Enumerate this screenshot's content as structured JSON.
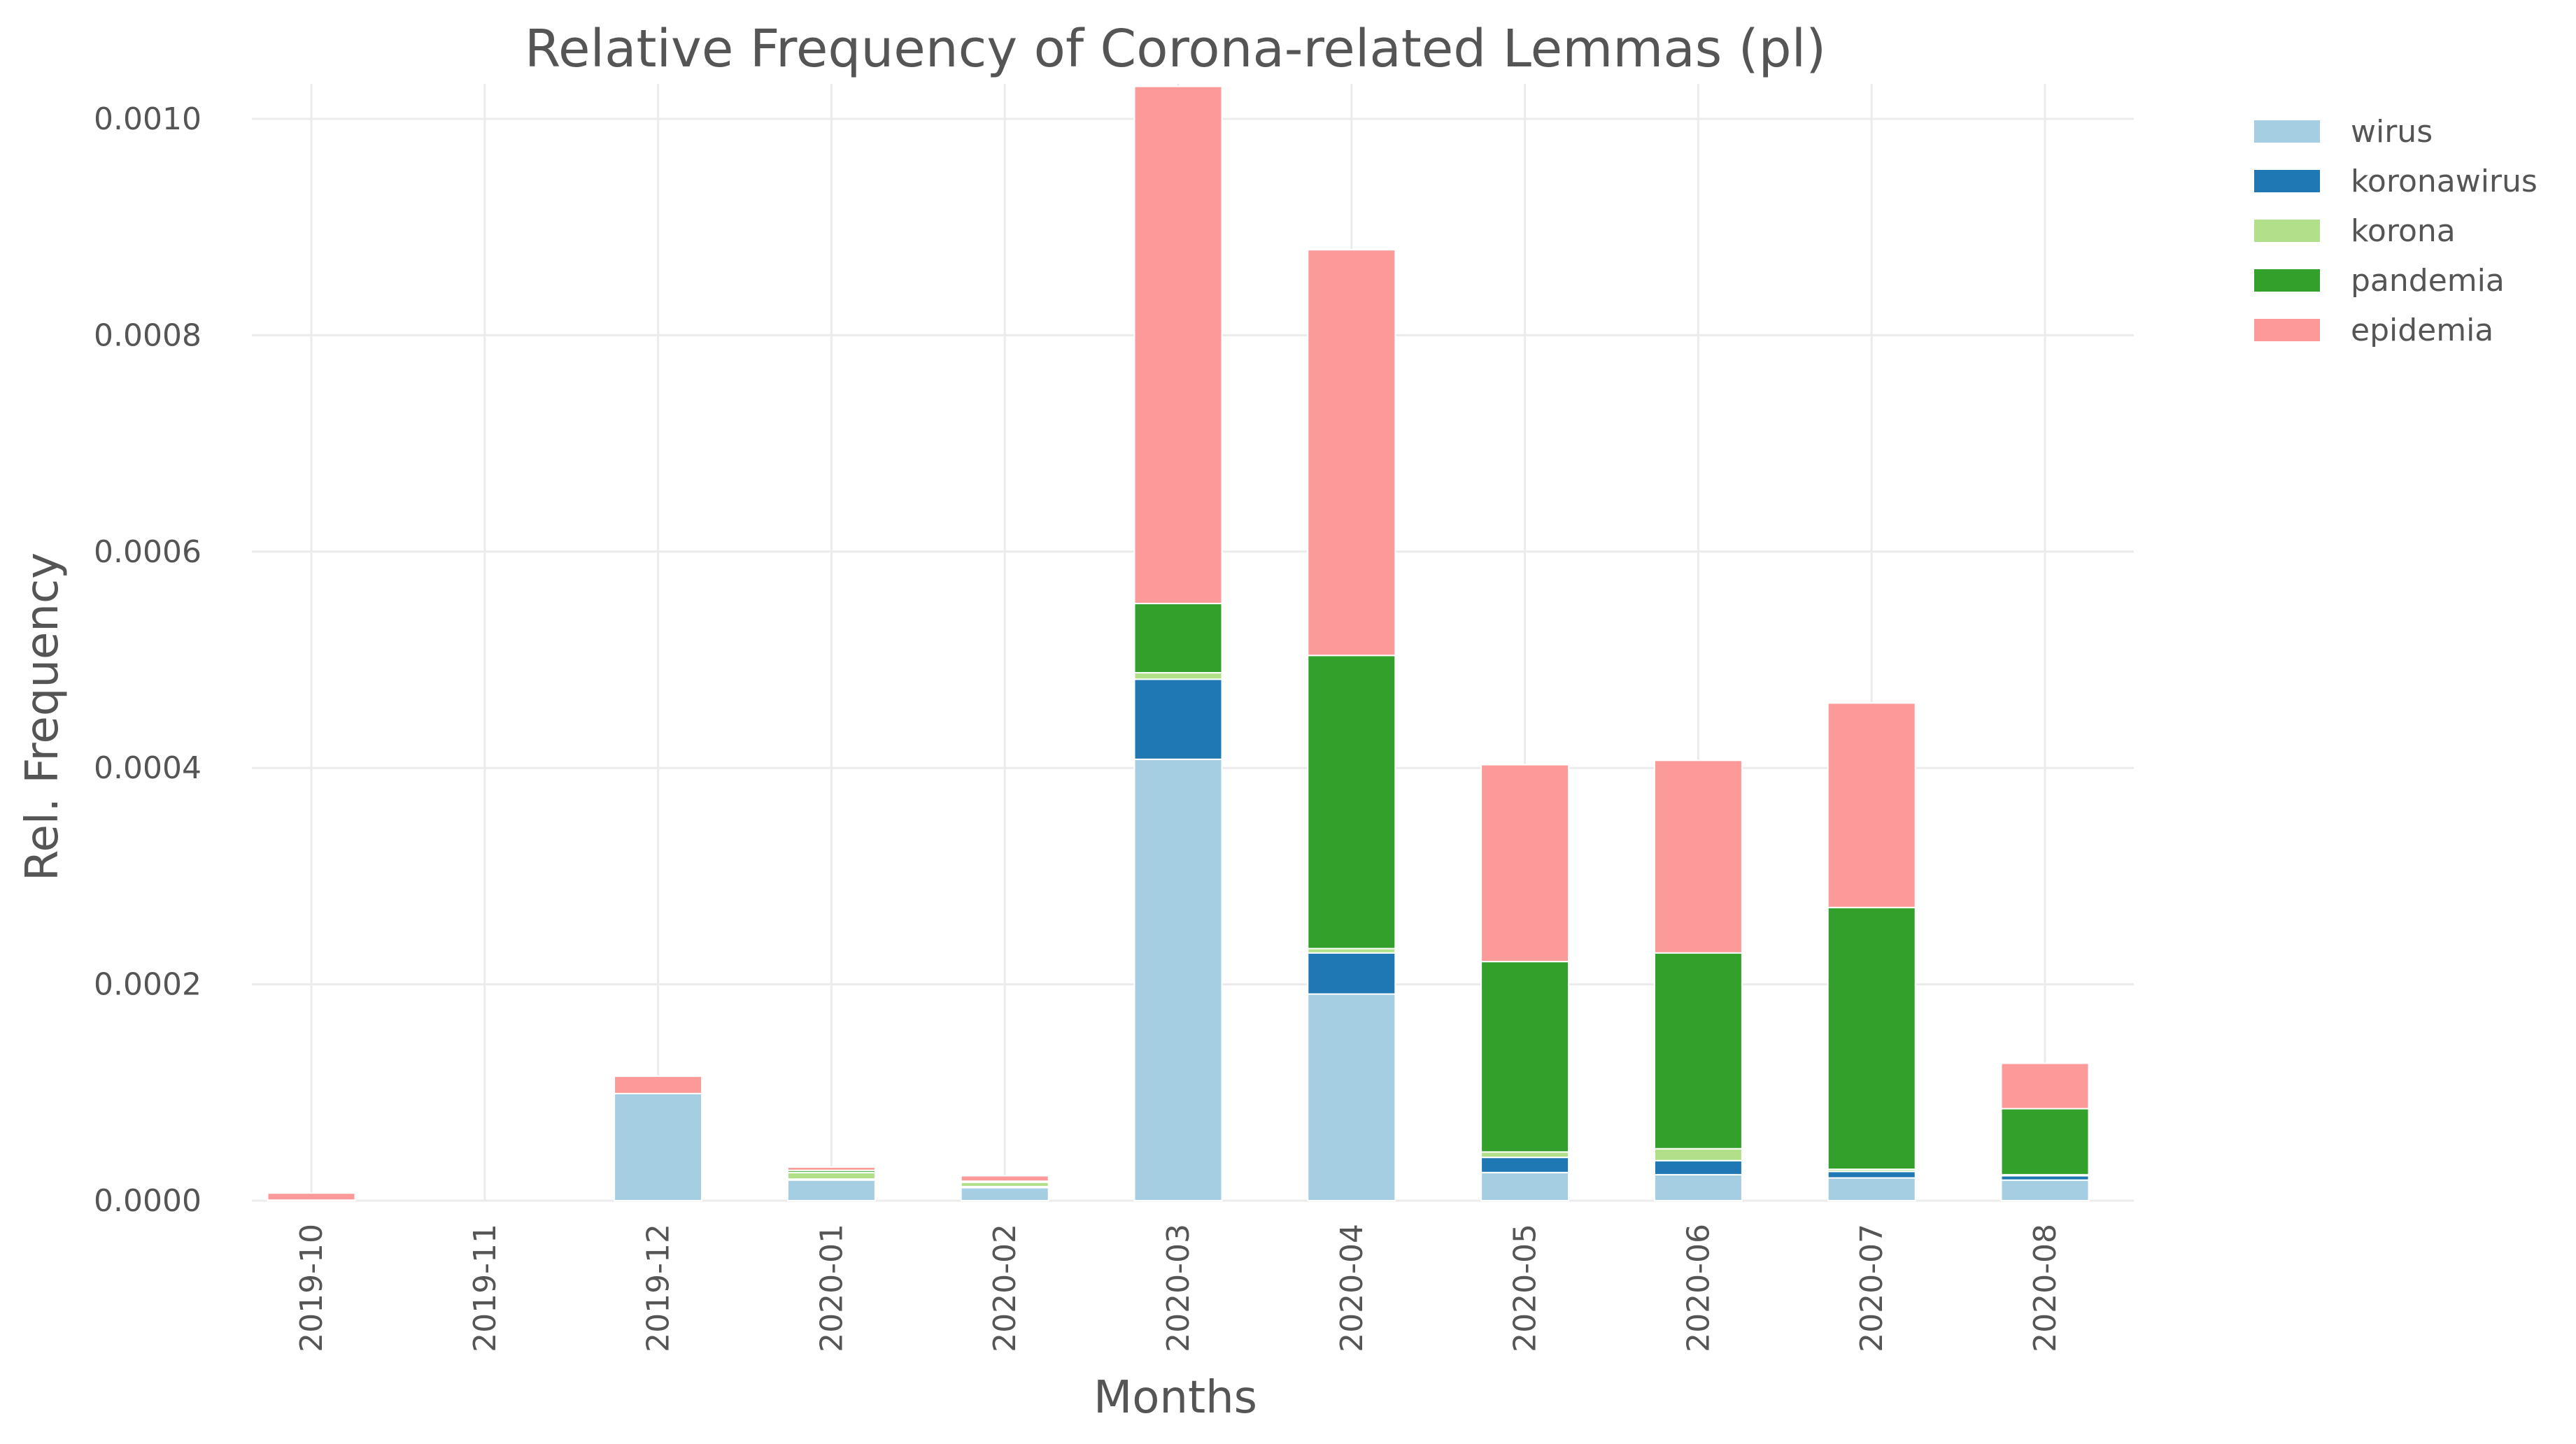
{
  "chart_data": {
    "type": "bar",
    "stacked": true,
    "title": "Relative Frequency of Corona-related Lemmas (pl)",
    "xlabel": "Months",
    "ylabel": "Rel. Frequency",
    "categories": [
      "2019-10",
      "2019-11",
      "2019-12",
      "2020-01",
      "2020-02",
      "2020-03",
      "2020-04",
      "2020-05",
      "2020-06",
      "2020-07",
      "2020-08"
    ],
    "ylim": [
      0,
      0.00103
    ],
    "yticks": [
      "0.0000",
      "0.0002",
      "0.0004",
      "0.0006",
      "0.0008",
      "0.0010"
    ],
    "ytick_values": [
      0,
      0.0002,
      0.0004,
      0.0006,
      0.0008,
      0.001
    ],
    "grid": true,
    "legend_position": "top-right, outside plot",
    "series": [
      {
        "name": "wirus",
        "color": "#a6cee3",
        "values": [
          5e-07,
          0,
          9.9e-05,
          1.9e-05,
          1.2e-05,
          0.000408,
          0.000191,
          2.6e-05,
          2.4e-05,
          2.1e-05,
          1.9e-05
        ]
      },
      {
        "name": "koronawirus",
        "color": "#1f78b4",
        "values": [
          0,
          0,
          0,
          1e-06,
          1e-06,
          7.4e-05,
          3.8e-05,
          1.4e-05,
          1.3e-05,
          6e-06,
          4e-06
        ]
      },
      {
        "name": "korona",
        "color": "#b2df8a",
        "values": [
          0,
          0,
          0,
          6e-06,
          4e-06,
          6e-06,
          4e-06,
          5e-06,
          1.1e-05,
          2e-06,
          1e-06
        ]
      },
      {
        "name": "pandemia",
        "color": "#33a02c",
        "values": [
          0,
          0,
          0,
          2e-06,
          1e-06,
          6.4e-05,
          0.000271,
          0.000176,
          0.000181,
          0.000242,
          6.1e-05
        ]
      },
      {
        "name": "epidemia",
        "color": "#fb9a99",
        "values": [
          6.5e-06,
          0,
          1.6e-05,
          3e-06,
          5e-06,
          0.000478,
          0.000375,
          0.000182,
          0.000178,
          0.000189,
          4.2e-05
        ]
      }
    ]
  }
}
